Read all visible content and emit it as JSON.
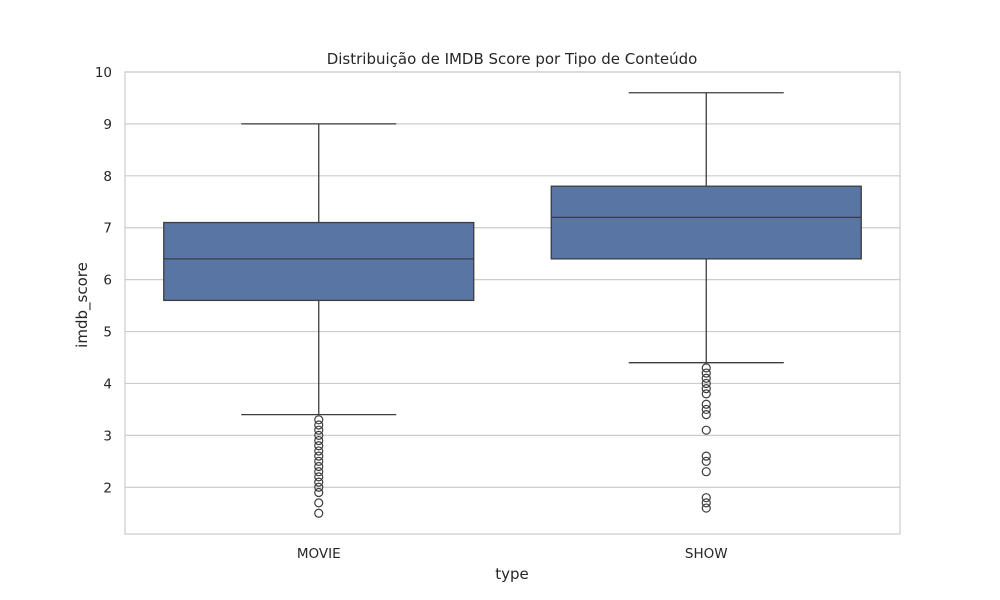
{
  "chart_data": {
    "type": "box",
    "title": "Distribuição de IMDB Score por Tipo de Conteúdo",
    "xlabel": "type",
    "ylabel": "imdb_score",
    "ylim": [
      1.1,
      10.0
    ],
    "yticks": [
      2,
      3,
      4,
      5,
      6,
      7,
      8,
      9,
      10
    ],
    "grid": true,
    "legend": "none",
    "colors": {
      "box": "#5875a4",
      "line": "#3d3d3d",
      "grid": "#cccccc",
      "frame": "#cccccc"
    },
    "categories": [
      "MOVIE",
      "SHOW"
    ],
    "boxes": [
      {
        "category": "MOVIE",
        "whisker_low": 3.4,
        "q1": 5.6,
        "median": 6.4,
        "q3": 7.1,
        "whisker_high": 9.0,
        "outliers": [
          3.3,
          3.2,
          3.1,
          3.0,
          2.9,
          2.8,
          2.7,
          2.6,
          2.5,
          2.4,
          2.3,
          2.2,
          2.1,
          2.0,
          1.9,
          1.7,
          1.5
        ]
      },
      {
        "category": "SHOW",
        "whisker_low": 4.4,
        "q1": 6.4,
        "median": 7.2,
        "q3": 7.8,
        "whisker_high": 9.6,
        "outliers": [
          4.3,
          4.2,
          4.1,
          4.0,
          3.9,
          3.8,
          3.6,
          3.5,
          3.4,
          3.1,
          2.6,
          2.5,
          2.3,
          1.8,
          1.7,
          1.6
        ]
      }
    ]
  }
}
